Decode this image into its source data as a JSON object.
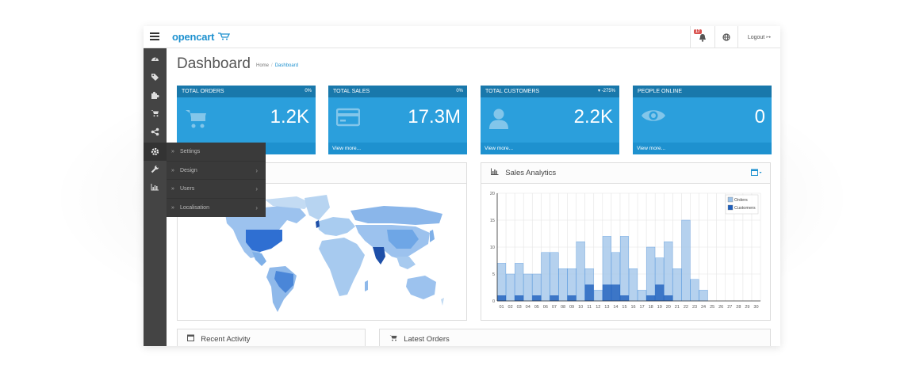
{
  "app": {
    "logo": "opencart",
    "logo_cart": "⮞"
  },
  "header": {
    "alert_badge": "17",
    "logout_label": "Logout"
  },
  "page": {
    "title": "Dashboard",
    "breadcrumb": [
      "Home",
      "Dashboard"
    ]
  },
  "sidebar_flyout": [
    {
      "label": "Settings",
      "has_submenu": false
    },
    {
      "label": "Design",
      "has_submenu": true
    },
    {
      "label": "Users",
      "has_submenu": true
    },
    {
      "label": "Localisation",
      "has_submenu": true
    }
  ],
  "tiles": [
    {
      "title": "TOTAL ORDERS",
      "change": "0%",
      "value": "1.2K",
      "link": "View more...",
      "icon": "cart-icon"
    },
    {
      "title": "TOTAL SALES",
      "change": "0%",
      "value": "17.3M",
      "link": "View more...",
      "icon": "credit-card-icon"
    },
    {
      "title": "TOTAL CUSTOMERS",
      "change": "▾ -275%",
      "value": "2.2K",
      "link": "View more...",
      "icon": "user-icon"
    },
    {
      "title": "PEOPLE ONLINE",
      "change": "",
      "value": "0",
      "link": "View more...",
      "icon": "eye-icon"
    }
  ],
  "panels": {
    "sales_analytics": "Sales Analytics",
    "recent_activity": "Recent Activity",
    "latest_orders": "Latest Orders"
  },
  "colors": {
    "brand": "#1e91cf",
    "orders": "#9cc2e8",
    "customers": "#1e5fbd"
  },
  "chart_data": {
    "type": "bar",
    "categories": [
      "01",
      "02",
      "03",
      "04",
      "05",
      "06",
      "07",
      "08",
      "09",
      "10",
      "11",
      "12",
      "13",
      "14",
      "15",
      "16",
      "17",
      "18",
      "19",
      "20",
      "21",
      "22",
      "23",
      "24",
      "25",
      "26",
      "27",
      "28",
      "29",
      "30"
    ],
    "series": [
      {
        "name": "Orders",
        "values": [
          7,
          5,
          7,
          5,
          5,
          9,
          9,
          6,
          6,
          11,
          6,
          2,
          12,
          9,
          12,
          6,
          2,
          10,
          8,
          11,
          6,
          15,
          4,
          2,
          0,
          0,
          0,
          0,
          0,
          0
        ]
      },
      {
        "name": "Customers",
        "values": [
          1,
          0,
          1,
          0,
          1,
          0,
          1,
          0,
          1,
          0,
          3,
          0,
          3,
          3,
          1,
          0,
          0,
          1,
          3,
          1,
          0,
          0,
          0,
          0,
          0,
          0,
          0,
          0,
          0,
          0
        ]
      }
    ],
    "ylim": [
      0,
      20
    ],
    "yticks": [
      0,
      5,
      10,
      15,
      20
    ],
    "legend": "top-right",
    "grid": true
  }
}
